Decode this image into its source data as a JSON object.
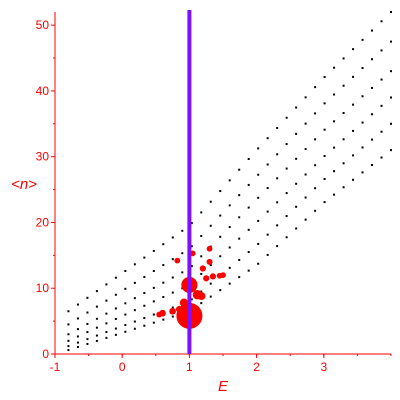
{
  "colors": {
    "axis": "#ff0000",
    "points": "#000000",
    "highlight": "#ff0000",
    "marker_line": "#7f10ff",
    "background": "#ffffff"
  },
  "chart_data": {
    "type": "scatter",
    "xlabel": "E",
    "ylabel": "<n>",
    "xlim": [
      -1,
      4
    ],
    "ylim": [
      0,
      52
    ],
    "xticks": [
      -1,
      0,
      1,
      2,
      3
    ],
    "yticks": [
      0,
      10,
      20,
      30,
      40,
      50
    ],
    "grid": false,
    "legend": "none",
    "vertical_line": {
      "x": 1
    },
    "description_fields": {
      "lower_envelope_approx": [
        [
          -0.8,
          0.6
        ],
        [
          0,
          3.0
        ],
        [
          1,
          6.5
        ],
        [
          2,
          13.5
        ],
        [
          3,
          23.5
        ],
        [
          4,
          31.5
        ]
      ],
      "upper_envelope_approx": [
        [
          -0.8,
          0.8
        ],
        [
          0,
          8.0
        ],
        [
          1,
          20.0
        ],
        [
          2,
          31.5
        ],
        [
          3,
          42.0
        ],
        [
          4,
          52.0
        ]
      ]
    },
    "series": [
      {
        "name": "",
        "style": "black dots",
        "branches": [
          {
            "y0": 0.6,
            "y1": 6.5,
            "y2": 13.5,
            "y3": 23.0,
            "y4": 31.0
          },
          {
            "y0": 1.2,
            "y1": 8.0,
            "y2": 16.5,
            "y3": 26.5,
            "y4": 35.0
          },
          {
            "y0": 2.0,
            "y1": 10.5,
            "y2": 20.0,
            "y3": 30.0,
            "y4": 39.0
          },
          {
            "y0": 3.0,
            "y1": 13.0,
            "y2": 23.5,
            "y3": 34.0,
            "y4": 43.0
          },
          {
            "y0": 4.5,
            "y1": 16.0,
            "y2": 27.0,
            "y3": 38.0,
            "y4": 47.5
          },
          {
            "y0": 6.5,
            "y1": 19.5,
            "y2": 31.0,
            "y3": 42.0,
            "y4": 52.0
          }
        ]
      },
      {
        "name": "",
        "style": "red markers (size ~ weight)",
        "points": [
          {
            "x": 1.0,
            "y": 5.8,
            "w": 1.0
          },
          {
            "x": 1.0,
            "y": 10.5,
            "w": 0.55
          },
          {
            "x": 1.12,
            "y": 9.0,
            "w": 0.25
          },
          {
            "x": 0.92,
            "y": 7.8,
            "w": 0.2
          },
          {
            "x": 1.18,
            "y": 8.8,
            "w": 0.18
          },
          {
            "x": 0.6,
            "y": 6.2,
            "w": 0.12
          },
          {
            "x": 0.75,
            "y": 6.5,
            "w": 0.12
          },
          {
            "x": 0.85,
            "y": 6.8,
            "w": 0.13
          },
          {
            "x": 1.25,
            "y": 11.5,
            "w": 0.1
          },
          {
            "x": 1.35,
            "y": 11.8,
            "w": 0.1
          },
          {
            "x": 1.2,
            "y": 13.0,
            "w": 0.1
          },
          {
            "x": 1.3,
            "y": 14.0,
            "w": 0.09
          },
          {
            "x": 0.82,
            "y": 14.2,
            "w": 0.08
          },
          {
            "x": 1.05,
            "y": 15.3,
            "w": 0.08
          },
          {
            "x": 1.3,
            "y": 16.0,
            "w": 0.08
          },
          {
            "x": 0.55,
            "y": 6.0,
            "w": 0.08
          },
          {
            "x": 1.45,
            "y": 11.9,
            "w": 0.08
          },
          {
            "x": 1.5,
            "y": 12.0,
            "w": 0.08
          }
        ]
      }
    ]
  }
}
